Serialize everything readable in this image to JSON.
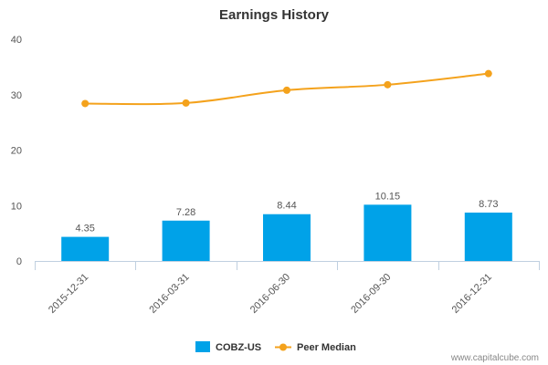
{
  "chart_data": {
    "type": "bar",
    "title": "Earnings History",
    "xlabel": "",
    "ylabel": "",
    "categories": [
      "2015-12-31",
      "2016-03-31",
      "2016-06-30",
      "2016-09-30",
      "2016-12-31"
    ],
    "series": [
      {
        "name": "COBZ-US",
        "type": "bar",
        "values": [
          4.35,
          7.28,
          8.44,
          10.15,
          8.73
        ],
        "labels": [
          "4.35",
          "7.28",
          "8.44",
          "10.15",
          "8.73"
        ],
        "color": "#00a2e8"
      },
      {
        "name": "Peer Median",
        "type": "line",
        "values": [
          28.4,
          28.5,
          30.8,
          31.8,
          33.8
        ],
        "color": "#f4a21c"
      }
    ],
    "ylim": [
      0,
      40
    ],
    "yticks": [
      "0",
      "10",
      "20",
      "30",
      "40"
    ],
    "grid": false,
    "legend": "bottom-center"
  },
  "footer": {
    "credit": "www.capitalcube.com"
  },
  "colors": {
    "axis": "#c0d0e0",
    "bar": "#00a2e8",
    "line": "#f4a21c"
  }
}
